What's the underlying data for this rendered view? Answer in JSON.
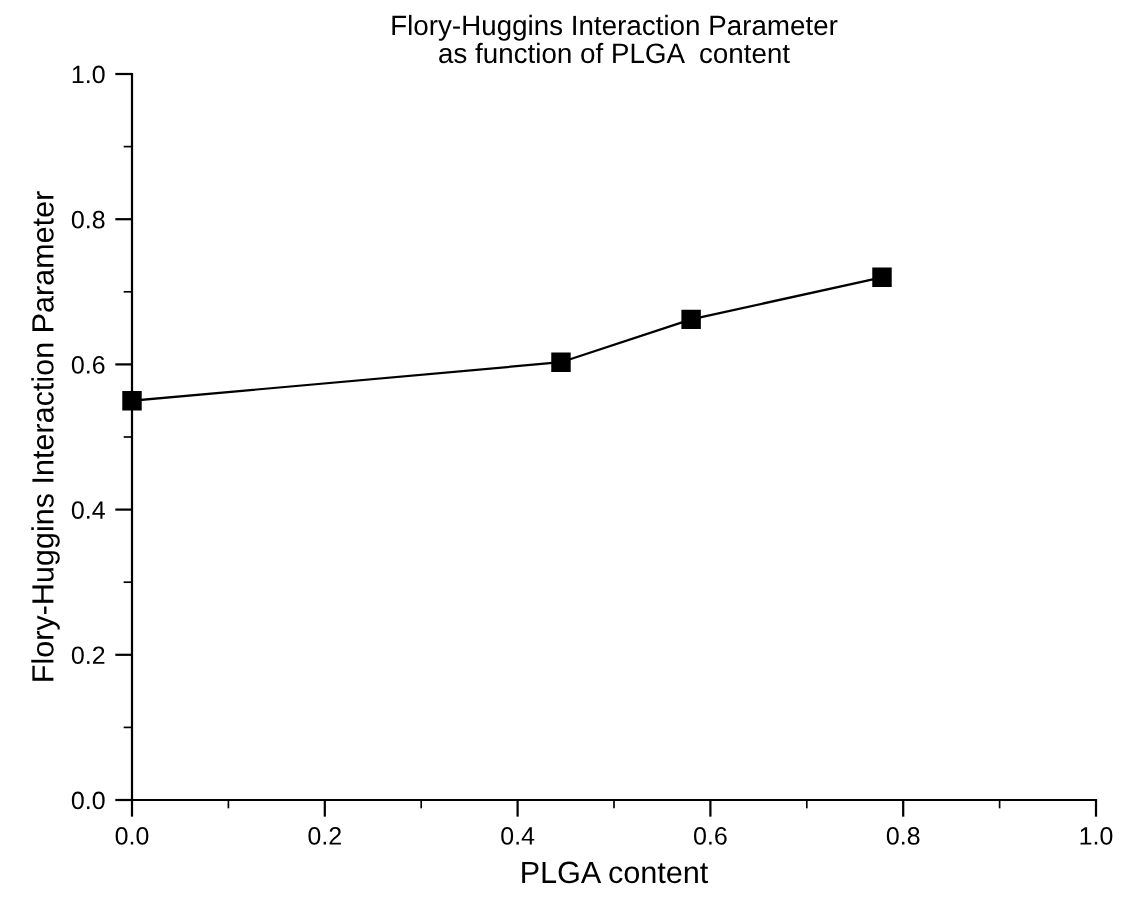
{
  "chart_data": {
    "type": "line",
    "title": "Flory-Huggins Interaction Parameter\nas function of PLGA  content",
    "xlabel": "PLGA content",
    "ylabel": "Flory-Huggins Interaction Parameter",
    "x": [
      0.0,
      0.445,
      0.58,
      0.778
    ],
    "series": [
      {
        "color": "#000000",
        "values": [
          0.55,
          0.603,
          0.662,
          0.72
        ]
      }
    ],
    "xlim": [
      0,
      1
    ],
    "ylim": [
      0,
      1
    ],
    "xticks": [
      {
        "value": 0,
        "label": "0.0"
      },
      0.2,
      0.4,
      0.6,
      0.8,
      {
        "value": 1,
        "label": "1.0"
      }
    ],
    "yticks": [
      {
        "value": 0,
        "label": "0.0"
      },
      0.2,
      0.4,
      0.6,
      0.8,
      {
        "value": 1,
        "label": "1.0"
      }
    ],
    "marker": "square",
    "line_style": "solid",
    "grid": false,
    "legend": false
  }
}
